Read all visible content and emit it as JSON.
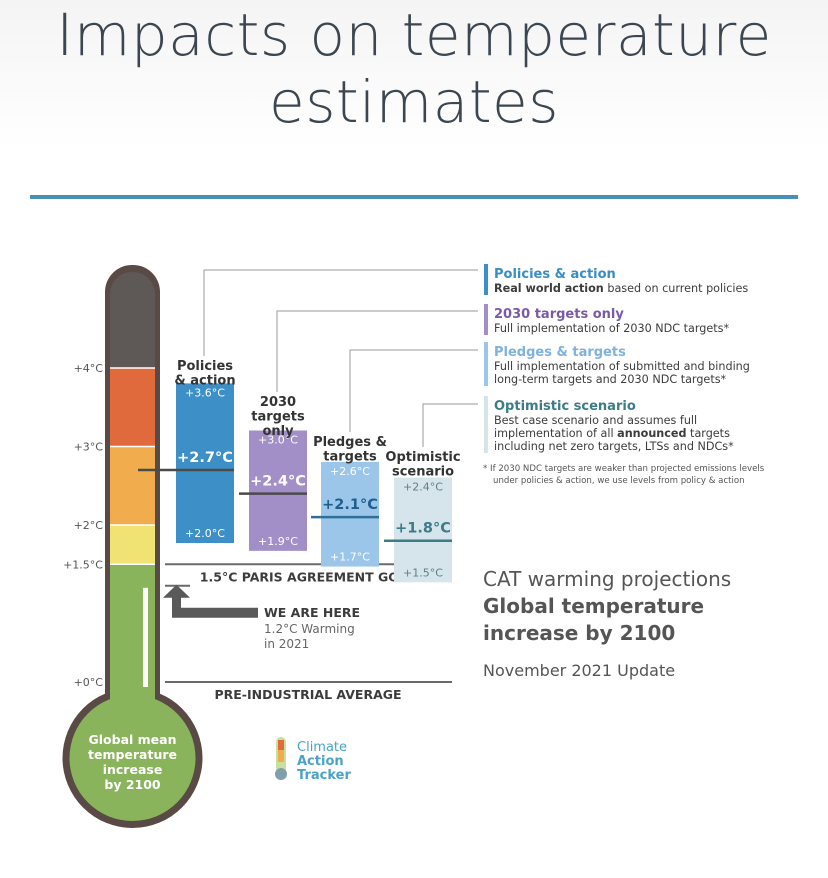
{
  "page": {
    "title_line1": "Impacts on temperature",
    "title_line2": "estimates"
  },
  "colors": {
    "policies": "#3d8fc8",
    "targets2030": "#a38fc7",
    "pledges": "#9cc6e9",
    "optimistic": "#d6e5eb",
    "rule": "#4a8fb4",
    "therm_outline": "#5a4a46",
    "therm_green": "#8ab45c"
  },
  "chart_data": {
    "type": "bar",
    "title": "CAT warming projections",
    "subtitle": "Global temperature increase by 2100",
    "update": "November 2021 Update",
    "ylabel": "Global mean temperature increase by 2100",
    "ylim": [
      0,
      5.3
    ],
    "yticks": [
      {
        "value": 0,
        "label": "+0°C"
      },
      {
        "value": 1.5,
        "label": "+1.5°C"
      },
      {
        "value": 2,
        "label": "+2°C"
      },
      {
        "value": 3,
        "label": "+3°C"
      },
      {
        "value": 4,
        "label": "+4°C"
      }
    ],
    "thermometer_bands": [
      {
        "from": 0,
        "to": 1.5,
        "color": "#8ab45c"
      },
      {
        "from": 1.5,
        "to": 2.0,
        "color": "#f0e373"
      },
      {
        "from": 2.0,
        "to": 3.0,
        "color": "#f1ad4d"
      },
      {
        "from": 3.0,
        "to": 4.0,
        "color": "#e06a3c"
      },
      {
        "from": 4.0,
        "to": 5.3,
        "color": "#5e5857"
      }
    ],
    "scenarios": [
      {
        "key": "policies",
        "name_lines": [
          "Policies",
          "& action"
        ],
        "central": 2.7,
        "low": 2.0,
        "high": 3.6,
        "central_label": "+2.7°C",
        "low_label": "+2.0°C",
        "high_label": "+3.6°C"
      },
      {
        "key": "targets2030",
        "name_lines": [
          "2030",
          "targets",
          "only"
        ],
        "central": 2.4,
        "low": 1.9,
        "high": 3.0,
        "central_label": "+2.4°C",
        "low_label": "+1.9°C",
        "high_label": "+3.0°C"
      },
      {
        "key": "pledges",
        "name_lines": [
          "Pledges &",
          "targets"
        ],
        "central": 2.1,
        "low": 1.7,
        "high": 2.6,
        "central_label": "+2.1°C",
        "low_label": "+1.7°C",
        "high_label": "+2.6°C"
      },
      {
        "key": "optimistic",
        "name_lines": [
          "Optimistic",
          "scenario"
        ],
        "central": 1.8,
        "low": 1.5,
        "high": 2.4,
        "central_label": "+1.8°C",
        "low_label": "+1.5°C",
        "high_label": "+2.4°C"
      }
    ],
    "reference_lines": [
      {
        "value": 1.5,
        "label": "1.5°C PARIS AGREEMENT GOAL"
      },
      {
        "value": 0,
        "label": "PRE-INDUSTRIAL AVERAGE"
      }
    ],
    "current": {
      "value": 1.2,
      "label": "WE ARE HERE",
      "detail_line1": "1.2°C Warming",
      "detail_line2": "in 2021"
    },
    "bulb_text": [
      "Global mean",
      "temperature",
      "increase",
      "by 2100"
    ],
    "legend": [
      {
        "key": "policies",
        "title": "Policies & action",
        "lines": [
          {
            "bold": "Real world action",
            "rest": " based on current policies"
          }
        ]
      },
      {
        "key": "targets2030",
        "title": "2030 targets only",
        "lines": [
          {
            "bold": "",
            "rest": "Full implementation of 2030 NDC targets*"
          }
        ]
      },
      {
        "key": "pledges",
        "title": "Pledges & targets",
        "lines": [
          {
            "bold": "",
            "rest": "Full implementation of submitted and binding"
          },
          {
            "bold": "",
            "rest": "long-term targets and 2030 NDC targets*"
          }
        ]
      },
      {
        "key": "optimistic",
        "title": "Optimistic scenario",
        "lines": [
          {
            "bold": "",
            "rest": "Best case scenario and assumes full"
          },
          {
            "pre": "implementation of all ",
            "bold": "announced",
            "rest": " targets"
          },
          {
            "bold": "",
            "rest": "including net zero targets, LTSs and NDCs*"
          }
        ]
      }
    ],
    "footnote": [
      "* If 2030 NDC targets are weaker than projected emissions levels",
      "under policies & action, we use levels from policy & action"
    ],
    "logo_lines": [
      "Climate",
      "Action",
      "Tracker"
    ]
  }
}
